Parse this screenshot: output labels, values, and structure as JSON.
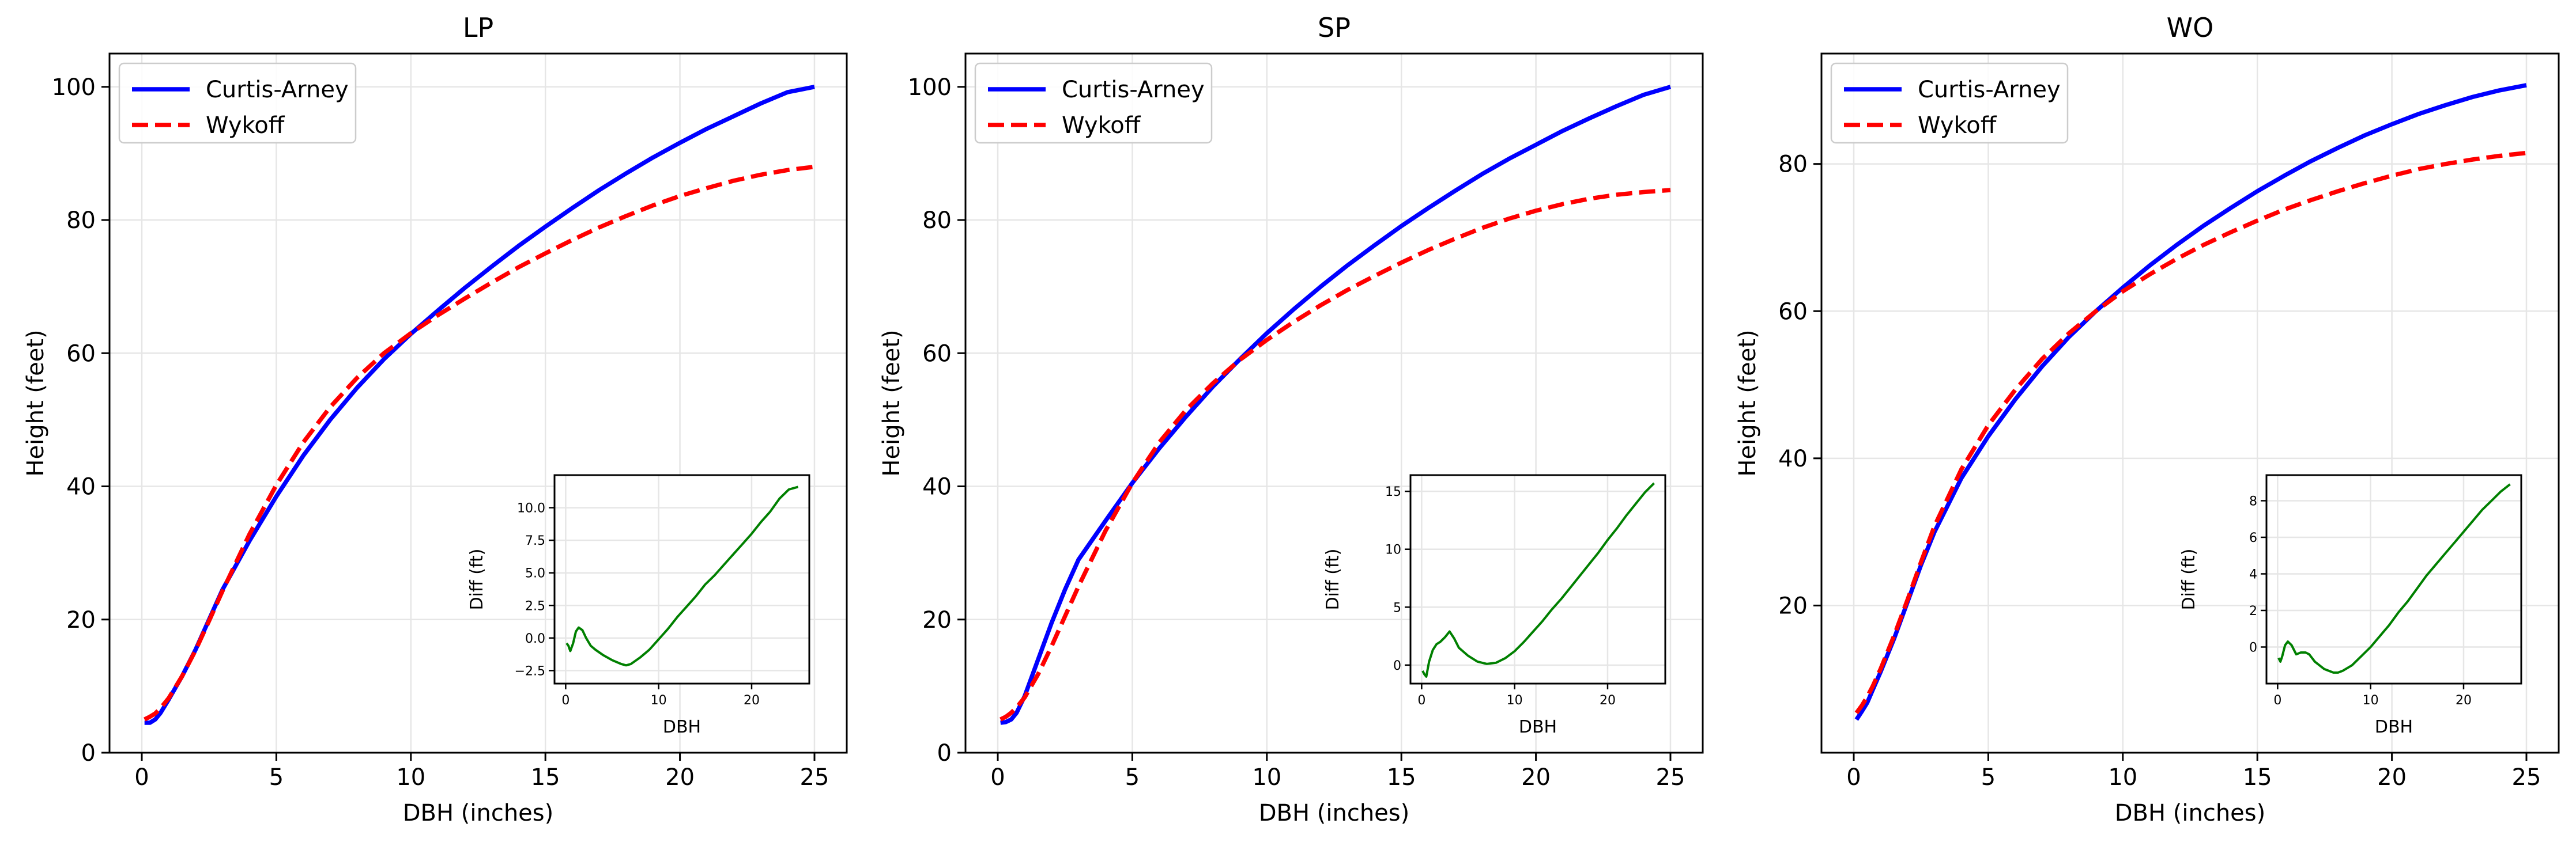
{
  "chart_data": [
    {
      "type": "line",
      "title": "LP",
      "xlabel": "DBH (inches)",
      "ylabel": "Height (feet)",
      "xlim": [
        -1.2,
        26.2
      ],
      "ylim": [
        0,
        105
      ],
      "xticks": [
        0,
        5,
        10,
        15,
        20,
        25
      ],
      "yticks": [
        0,
        20,
        40,
        60,
        80,
        100
      ],
      "grid": true,
      "legend": "upper left",
      "series": [
        {
          "name": "Curtis-Arney",
          "color": "#0000ff",
          "style": "solid",
          "x": [
            0.1,
            0.3,
            0.5,
            0.7,
            1,
            1.5,
            2,
            2.5,
            3,
            4,
            5,
            6,
            7,
            8,
            9,
            10,
            11,
            12,
            13,
            14,
            15,
            16,
            17,
            18,
            19,
            20,
            21,
            22,
            23,
            24,
            25
          ],
          "y": [
            4.5,
            4.5,
            5.0,
            6.0,
            8.0,
            11.5,
            15.5,
            20.0,
            24.5,
            31.8,
            38.5,
            44.6,
            50.0,
            54.8,
            59.1,
            62.9,
            66.4,
            69.8,
            73.0,
            76.1,
            79.0,
            81.8,
            84.5,
            87.0,
            89.4,
            91.6,
            93.7,
            95.6,
            97.5,
            99.2,
            100.0
          ]
        },
        {
          "name": "Wykoff",
          "color": "#ff0000",
          "style": "dashed",
          "x": [
            0.1,
            0.3,
            0.5,
            0.7,
            1,
            1.5,
            2,
            2.5,
            3,
            4,
            5,
            6,
            7,
            8,
            9,
            10,
            11,
            12,
            13,
            14,
            15,
            16,
            17,
            18,
            19,
            20,
            21,
            22,
            23,
            24,
            25
          ],
          "y": [
            5.0,
            5.4,
            5.9,
            6.7,
            8.2,
            11.5,
            15.4,
            19.8,
            24.3,
            32.8,
            40.2,
            46.6,
            51.9,
            56.3,
            60.0,
            63.0,
            65.7,
            68.2,
            70.6,
            72.9,
            75.0,
            77.0,
            78.9,
            80.6,
            82.2,
            83.6,
            84.8,
            85.9,
            86.8,
            87.5,
            88.0
          ]
        }
      ],
      "inset": {
        "xlabel": "DBH",
        "ylabel": "Diff (ft)",
        "xlim": [
          -1.2,
          26.2
        ],
        "ylim": [
          -3.5,
          12.5
        ],
        "xticks": [
          0,
          10,
          20
        ],
        "yticks": [
          -2.5,
          0.0,
          2.5,
          5.0,
          7.5,
          10.0
        ],
        "ytick_labels": [
          "−2.5",
          "0.0",
          "2.5",
          "5.0",
          "7.5",
          "10.0"
        ],
        "color": "#008000",
        "x": [
          0.1,
          0.3,
          0.5,
          0.8,
          1.1,
          1.4,
          1.8,
          2.2,
          2.7,
          3.2,
          4,
          5,
          6,
          6.5,
          7,
          8,
          9,
          10,
          11,
          12,
          13,
          14,
          15,
          16,
          17,
          18,
          19,
          20,
          21,
          22,
          23,
          24,
          25
        ],
        "y": [
          -0.4,
          -0.6,
          -1.0,
          -0.4,
          0.5,
          0.8,
          0.6,
          0.0,
          -0.6,
          -0.9,
          -1.3,
          -1.7,
          -2.0,
          -2.1,
          -2.0,
          -1.5,
          -0.9,
          -0.1,
          0.7,
          1.6,
          2.4,
          3.2,
          4.1,
          4.8,
          5.6,
          6.4,
          7.2,
          8.0,
          8.9,
          9.7,
          10.7,
          11.4,
          11.6
        ]
      }
    },
    {
      "type": "line",
      "title": "SP",
      "xlabel": "DBH (inches)",
      "ylabel": "Height (feet)",
      "xlim": [
        -1.2,
        26.2
      ],
      "ylim": [
        0,
        105
      ],
      "xticks": [
        0,
        5,
        10,
        15,
        20,
        25
      ],
      "yticks": [
        0,
        20,
        40,
        60,
        80,
        100
      ],
      "grid": true,
      "legend": "upper left",
      "series": [
        {
          "name": "Curtis-Arney",
          "color": "#0000ff",
          "style": "solid",
          "x": [
            0.1,
            0.3,
            0.5,
            0.7,
            1,
            1.5,
            2,
            2.5,
            3,
            4,
            5,
            6,
            7,
            8,
            9,
            10,
            11,
            12,
            13,
            14,
            15,
            16,
            17,
            18,
            19,
            20,
            21,
            22,
            23,
            24,
            25
          ],
          "y": [
            4.5,
            4.6,
            5.0,
            6.0,
            8.5,
            14.0,
            19.5,
            24.5,
            29.0,
            34.8,
            40.5,
            45.7,
            50.5,
            55.0,
            59.1,
            63.0,
            66.6,
            70.0,
            73.2,
            76.2,
            79.1,
            81.8,
            84.4,
            86.9,
            89.2,
            91.3,
            93.4,
            95.3,
            97.1,
            98.8,
            100.0
          ]
        },
        {
          "name": "Wykoff",
          "color": "#ff0000",
          "style": "dashed",
          "x": [
            0.1,
            0.3,
            0.5,
            0.7,
            1,
            1.5,
            2,
            2.5,
            3,
            4,
            5,
            6,
            7,
            8,
            9,
            10,
            11,
            12,
            13,
            14,
            15,
            16,
            17,
            18,
            19,
            20,
            21,
            22,
            23,
            24,
            25
          ],
          "y": [
            5.0,
            5.4,
            6.0,
            6.8,
            8.3,
            11.8,
            16.0,
            20.5,
            25.0,
            33.3,
            40.5,
            46.6,
            51.5,
            55.5,
            59.0,
            62.0,
            64.7,
            67.2,
            69.5,
            71.6,
            73.6,
            75.5,
            77.2,
            78.8,
            80.2,
            81.4,
            82.4,
            83.2,
            83.8,
            84.2,
            84.5
          ]
        }
      ],
      "inset": {
        "xlabel": "DBH",
        "ylabel": "Diff (ft)",
        "xlim": [
          -1.2,
          26.2
        ],
        "ylim": [
          -1.6,
          16.4
        ],
        "xticks": [
          0,
          10,
          20
        ],
        "yticks": [
          0,
          5,
          10,
          15
        ],
        "ytick_labels": [
          "0",
          "5",
          "10",
          "15"
        ],
        "color": "#008000",
        "x": [
          0.1,
          0.3,
          0.5,
          0.8,
          1.2,
          1.6,
          2.0,
          2.5,
          3.0,
          3.5,
          4,
          5,
          6,
          7,
          8,
          9,
          10,
          11,
          12,
          13,
          14,
          15,
          16,
          17,
          18,
          19,
          20,
          21,
          22,
          23,
          24,
          25
        ],
        "y": [
          -0.5,
          -0.8,
          -1.0,
          0.3,
          1.3,
          1.8,
          2.0,
          2.4,
          2.9,
          2.3,
          1.5,
          0.8,
          0.3,
          0.1,
          0.2,
          0.6,
          1.2,
          2.0,
          2.9,
          3.8,
          4.8,
          5.7,
          6.7,
          7.7,
          8.7,
          9.7,
          10.8,
          11.8,
          12.9,
          13.9,
          14.9,
          15.7
        ]
      }
    },
    {
      "type": "line",
      "title": "WO",
      "xlabel": "DBH (inches)",
      "ylabel": "Height (feet)",
      "xlim": [
        -1.2,
        26.2
      ],
      "ylim": [
        0,
        95
      ],
      "xticks": [
        0,
        5,
        10,
        15,
        20,
        25
      ],
      "yticks": [
        20,
        40,
        60,
        80
      ],
      "grid": true,
      "legend": "upper left",
      "series": [
        {
          "name": "Curtis-Arney",
          "color": "#0000ff",
          "style": "solid",
          "x": [
            0.1,
            0.3,
            0.5,
            0.7,
            1,
            1.5,
            2,
            2.5,
            3,
            4,
            5,
            6,
            7,
            8,
            9,
            10,
            11,
            12,
            13,
            14,
            15,
            16,
            17,
            18,
            19,
            20,
            21,
            22,
            23,
            24,
            25
          ],
          "y": [
            4.5,
            5.6,
            6.8,
            8.5,
            11.0,
            15.5,
            20.5,
            25.5,
            30.0,
            37.3,
            43.0,
            48.0,
            52.5,
            56.5,
            60.0,
            63.2,
            66.2,
            69.0,
            71.6,
            74.0,
            76.3,
            78.4,
            80.4,
            82.2,
            83.9,
            85.4,
            86.8,
            88.0,
            89.1,
            90.0,
            90.7
          ]
        },
        {
          "name": "Wykoff",
          "color": "#ff0000",
          "style": "dashed",
          "x": [
            0.1,
            0.3,
            0.5,
            0.7,
            1,
            1.5,
            2,
            2.5,
            3,
            4,
            5,
            6,
            7,
            8,
            9,
            10,
            11,
            12,
            13,
            14,
            15,
            16,
            17,
            18,
            19,
            20,
            21,
            22,
            23,
            24,
            25
          ],
          "y": [
            5.4,
            6.4,
            7.6,
            9.0,
            11.4,
            15.9,
            20.8,
            25.9,
            30.8,
            38.5,
            44.5,
            49.3,
            53.5,
            57.0,
            60.0,
            62.7,
            65.0,
            67.1,
            69.0,
            70.7,
            72.3,
            73.8,
            75.1,
            76.3,
            77.4,
            78.4,
            79.3,
            80.0,
            80.6,
            81.1,
            81.5
          ]
        }
      ],
      "inset": {
        "xlabel": "DBH",
        "ylabel": "Diff (ft)",
        "xlim": [
          -1.2,
          26.2
        ],
        "ylim": [
          -2.0,
          9.4
        ],
        "xticks": [
          0,
          10,
          20
        ],
        "yticks": [
          0,
          2,
          4,
          6,
          8
        ],
        "ytick_labels": [
          "0",
          "2",
          "4",
          "6",
          "8"
        ],
        "color": "#008000",
        "x": [
          0.1,
          0.3,
          0.5,
          0.8,
          1.1,
          1.5,
          2.0,
          2.5,
          3.0,
          3.4,
          4,
          5,
          6,
          6.5,
          7,
          8,
          9,
          10,
          11,
          12,
          13,
          14,
          15,
          16,
          17,
          18,
          19,
          20,
          21,
          22,
          23,
          24,
          25
        ],
        "y": [
          -0.6,
          -0.8,
          -0.5,
          0.1,
          0.3,
          0.1,
          -0.4,
          -0.3,
          -0.3,
          -0.4,
          -0.8,
          -1.2,
          -1.4,
          -1.4,
          -1.3,
          -1.0,
          -0.5,
          0.0,
          0.6,
          1.2,
          1.9,
          2.5,
          3.2,
          3.9,
          4.5,
          5.1,
          5.7,
          6.3,
          6.9,
          7.5,
          8.0,
          8.5,
          8.9
        ]
      }
    }
  ]
}
